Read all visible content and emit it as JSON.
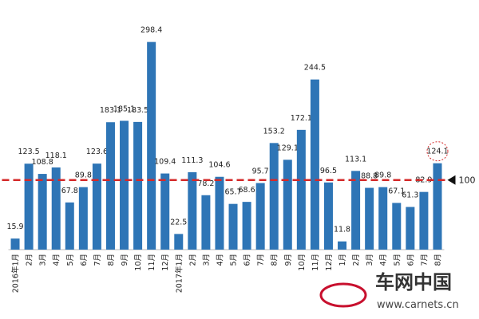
{
  "chart_data": {
    "type": "bar",
    "categories": [
      "2016年1月",
      "2月",
      "3月",
      "4月",
      "5月",
      "6月",
      "7月",
      "8月",
      "9月",
      "10月",
      "11月",
      "12月",
      "2017年1月",
      "2月",
      "3月",
      "4月",
      "5月",
      "6月",
      "7月",
      "8月",
      "9月",
      "10月",
      "11月",
      "12月",
      "1月",
      "2月",
      "3月",
      "4月",
      "5月",
      "6月",
      "7月",
      "8月"
    ],
    "values": [
      15.9,
      123.5,
      108.8,
      118.1,
      67.8,
      89.8,
      123.6,
      183.1,
      185.1,
      183.5,
      298.4,
      109.4,
      22.5,
      111.3,
      78.2,
      104.6,
      65.7,
      68.6,
      95.7,
      153.2,
      129.1,
      172.1,
      244.5,
      96.5,
      11.8,
      113.1,
      88.8,
      89.8,
      67.1,
      61.3,
      82.9,
      124.1
    ],
    "color": "#2e75b6",
    "ylim": [
      0,
      300
    ],
    "reference_line": 100,
    "reference_color": "#d42a2a"
  },
  "watermark": {
    "name": "车网中国",
    "url": "www.carnets.cn"
  }
}
